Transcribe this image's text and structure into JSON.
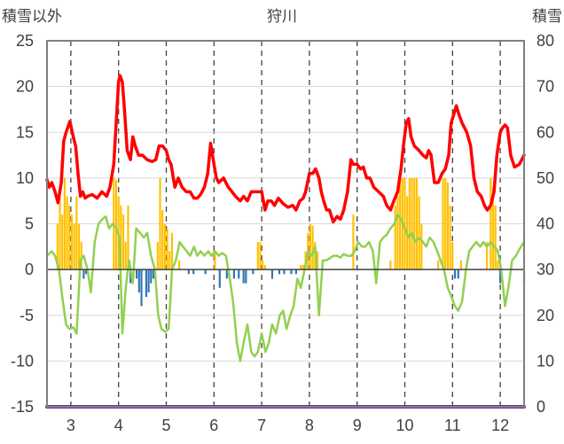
{
  "chart_data": {
    "type": "line",
    "title": "狩川",
    "ylabel_left": "積雪以外",
    "ylabel_right": "積雪",
    "ylim_left": [
      -15,
      25
    ],
    "ylim_right": [
      0,
      80
    ],
    "yticks_left": [
      -15,
      -10,
      -5,
      0,
      5,
      10,
      15,
      20,
      25
    ],
    "yticks_right": [
      0,
      10,
      20,
      30,
      40,
      50,
      60,
      70,
      80
    ],
    "xlim": [
      2.5,
      12.5
    ],
    "xticks": [
      3,
      4,
      5,
      6,
      7,
      8,
      9,
      10,
      11,
      12
    ],
    "xtick_labels": [
      "3",
      "4",
      "5",
      "6",
      "7",
      "8",
      "9",
      "10",
      "11",
      "12"
    ],
    "grid": "dashed",
    "colors": {
      "red_line": "#ff0000",
      "green_line": "#92d050",
      "bar_positive": "#ffc000",
      "bar_negative": "#2e75b6",
      "bottom_line": "#7030a0",
      "frame": "#7f7f7f",
      "text": "#404040"
    },
    "series": [
      {
        "axis": "left",
        "style": "line",
        "color": "#ff0000",
        "x": [
          2.5,
          2.55,
          2.6,
          2.67,
          2.73,
          2.8,
          2.85,
          2.9,
          2.98,
          3.05,
          3.1,
          3.15,
          3.2,
          3.25,
          3.3,
          3.35,
          3.45,
          3.55,
          3.65,
          3.75,
          3.82,
          3.9,
          3.95,
          4.0,
          4.03,
          4.08,
          4.13,
          4.18,
          4.25,
          4.3,
          4.35,
          4.42,
          4.5,
          4.6,
          4.7,
          4.78,
          4.85,
          4.92,
          5.0,
          5.05,
          5.1,
          5.18,
          5.25,
          5.33,
          5.42,
          5.5,
          5.58,
          5.65,
          5.72,
          5.8,
          5.87,
          5.93,
          6.0,
          6.05,
          6.1,
          6.2,
          6.3,
          6.38,
          6.45,
          6.55,
          6.62,
          6.7,
          6.78,
          6.85,
          6.92,
          7.0,
          7.07,
          7.13,
          7.2,
          7.27,
          7.35,
          7.45,
          7.55,
          7.65,
          7.72,
          7.8,
          7.87,
          7.92,
          8.0,
          8.07,
          8.13,
          8.2,
          8.25,
          8.3,
          8.36,
          8.42,
          8.5,
          8.58,
          8.65,
          8.72,
          8.8,
          8.87,
          8.92,
          9.0,
          9.07,
          9.13,
          9.2,
          9.27,
          9.35,
          9.45,
          9.55,
          9.62,
          9.7,
          9.77,
          9.85,
          9.92,
          9.97,
          10.03,
          10.08,
          10.13,
          10.2,
          10.3,
          10.38,
          10.45,
          10.5,
          10.55,
          10.62,
          10.7,
          10.78,
          10.85,
          10.92,
          10.97,
          11.03,
          11.08,
          11.13,
          11.2,
          11.3,
          11.38,
          11.45,
          11.52,
          11.6,
          11.67,
          11.73,
          11.8,
          11.87,
          11.93,
          12.0,
          12.05,
          12.1,
          12.15,
          12.22,
          12.3,
          12.4,
          12.5
        ],
        "values": [
          9.8,
          9,
          9.5,
          8.5,
          7.3,
          9.5,
          14,
          15,
          16.2,
          14.5,
          13.5,
          10.5,
          8,
          8.5,
          7.8,
          8,
          8.2,
          7.8,
          8.5,
          8,
          9,
          11.5,
          16,
          20.5,
          21.2,
          20.5,
          17,
          13,
          12,
          14.5,
          13.5,
          12.5,
          12.5,
          12,
          11.8,
          12,
          13.5,
          13.5,
          13,
          12,
          11.5,
          9,
          10,
          9,
          8.5,
          8.5,
          7.8,
          7.8,
          8.2,
          9,
          10.5,
          13.8,
          11.5,
          10,
          9.5,
          10,
          9,
          8.5,
          8,
          7.5,
          8,
          7.5,
          8.5,
          8.5,
          8.5,
          8.5,
          6.5,
          7.5,
          7.5,
          7,
          7.8,
          7.2,
          6.8,
          7,
          6.5,
          7.5,
          7.8,
          8.5,
          10.5,
          10.5,
          11,
          10,
          8.5,
          7.5,
          6.5,
          6.5,
          5.2,
          5.8,
          5.5,
          6.5,
          8.5,
          12,
          11.5,
          11.5,
          11,
          11.2,
          10,
          10,
          9,
          8.5,
          8,
          7,
          6.5,
          7.5,
          8.5,
          11,
          13.5,
          16,
          16.5,
          14.5,
          13.5,
          13,
          12.5,
          12.2,
          13,
          12.5,
          9.5,
          9.5,
          10.5,
          11,
          12.5,
          16,
          17,
          17.9,
          17,
          16,
          15,
          13.5,
          10,
          8.5,
          8,
          7,
          6.5,
          7,
          8.5,
          12.5,
          15,
          15.5,
          15.8,
          15.5,
          12.5,
          11.2,
          11.5,
          12.5
        ]
      },
      {
        "axis": "left",
        "style": "line",
        "color": "#92d050",
        "x": [
          2.5,
          2.6,
          2.67,
          2.75,
          2.82,
          2.9,
          2.97,
          3.05,
          3.12,
          3.2,
          3.27,
          3.35,
          3.42,
          3.5,
          3.58,
          3.66,
          3.73,
          3.8,
          3.88,
          3.95,
          4.02,
          4.08,
          4.15,
          4.22,
          4.3,
          4.37,
          4.45,
          4.53,
          4.6,
          4.68,
          4.76,
          4.83,
          4.9,
          4.98,
          5.05,
          5.12,
          5.2,
          5.28,
          5.35,
          5.43,
          5.5,
          5.58,
          5.65,
          5.72,
          5.8,
          5.88,
          5.95,
          6.02,
          6.1,
          6.17,
          6.25,
          6.33,
          6.4,
          6.48,
          6.55,
          6.62,
          6.7,
          6.78,
          6.85,
          6.92,
          7.0,
          7.08,
          7.15,
          7.22,
          7.3,
          7.38,
          7.45,
          7.52,
          7.6,
          7.67,
          7.75,
          7.82,
          7.9,
          7.97,
          8.05,
          8.12,
          8.2,
          8.28,
          8.35,
          8.42,
          8.5,
          8.58,
          8.65,
          8.72,
          8.8,
          8.88,
          8.95,
          9.02,
          9.1,
          9.17,
          9.25,
          9.33,
          9.4,
          9.48,
          9.55,
          9.62,
          9.7,
          9.78,
          9.85,
          9.92,
          10.0,
          10.08,
          10.15,
          10.22,
          10.3,
          10.38,
          10.45,
          10.52,
          10.6,
          10.68,
          10.75,
          10.82,
          10.9,
          10.98,
          11.05,
          11.12,
          11.2,
          11.28,
          11.35,
          11.42,
          11.5,
          11.58,
          11.65,
          11.72,
          11.8,
          11.88,
          11.95,
          12.02,
          12.1,
          12.17,
          12.25,
          12.33,
          12.4,
          12.5
        ],
        "values": [
          1.5,
          2,
          1.5,
          0,
          -3,
          -6,
          -6.5,
          -6.3,
          -7,
          1,
          1.5,
          0,
          -2.5,
          3,
          5,
          5.5,
          5.8,
          4.5,
          5,
          4.5,
          3.5,
          -7,
          -2,
          1,
          -1.5,
          4.5,
          4,
          3.5,
          4,
          1.5,
          0,
          -5,
          -6.5,
          -6.8,
          -6.5,
          0,
          1,
          3,
          2.5,
          2,
          1.5,
          2.5,
          1.5,
          2,
          1.5,
          2,
          1.5,
          2,
          1.5,
          1.8,
          1.5,
          -1,
          -3.5,
          -8,
          -10,
          -8,
          -6,
          -9,
          -9.5,
          -9,
          -7,
          -9,
          -8,
          -6,
          -7,
          -5,
          -4.5,
          -6.5,
          -5,
          -4,
          -1,
          -2,
          0,
          2,
          1.5,
          2.5,
          -5,
          1,
          1,
          1.2,
          1.5,
          1.5,
          1.3,
          1.7,
          1.5,
          1.5,
          2,
          3,
          2.5,
          2.5,
          3,
          2,
          -1.5,
          3,
          3.5,
          3.8,
          4.5,
          5,
          6,
          5.5,
          4.5,
          3.5,
          4,
          3,
          3.5,
          3,
          2.5,
          3.5,
          3,
          2,
          1,
          0,
          -2,
          -3,
          -4,
          -4.5,
          -3.5,
          0,
          2,
          2.5,
          3,
          2.5,
          3,
          2.5,
          3,
          2.5,
          2,
          0,
          -4,
          -2,
          1,
          1.5,
          2.2,
          3
        ]
      },
      {
        "axis": "left",
        "style": "bars",
        "color_positive": "#ffc000",
        "color_negative": "#2e75b6",
        "x": [
          2.72,
          2.77,
          2.82,
          2.87,
          2.92,
          2.97,
          3.02,
          3.07,
          3.12,
          3.17,
          3.22,
          3.27,
          3.32,
          3.9,
          3.95,
          4.0,
          4.05,
          4.1,
          4.15,
          4.2,
          4.25,
          4.38,
          4.43,
          4.48,
          4.58,
          4.63,
          4.68,
          4.73,
          4.82,
          4.87,
          4.92,
          4.97,
          5.02,
          5.07,
          5.12,
          5.27,
          5.47,
          5.57,
          5.82,
          6.02,
          6.12,
          6.27,
          6.42,
          6.52,
          6.62,
          6.67,
          6.82,
          6.92,
          6.97,
          7.02,
          7.07,
          7.22,
          7.37,
          7.47,
          7.62,
          7.72,
          7.82,
          7.87,
          7.92,
          7.97,
          8.02,
          8.07,
          8.12,
          8.17,
          8.92,
          9.7,
          9.8,
          9.85,
          9.9,
          9.95,
          10.0,
          10.05,
          10.1,
          10.15,
          10.2,
          10.25,
          10.3,
          10.35,
          10.7,
          10.8,
          10.85,
          10.9,
          10.95,
          11.0,
          11.05,
          11.12,
          11.18,
          11.72,
          11.8,
          11.85,
          11.9,
          11.95,
          12.0,
          12.5
        ],
        "values": [
          5,
          8,
          6,
          10,
          8,
          7,
          6,
          5,
          8,
          5,
          3,
          -1,
          -0.5,
          10,
          9.8,
          8,
          7,
          6,
          3,
          7,
          -1.5,
          -1,
          -2.5,
          -4,
          -3,
          -2.5,
          -1.5,
          -1,
          3,
          10,
          6.5,
          5,
          4.5,
          2,
          4,
          1,
          -0.5,
          -0.5,
          -0.5,
          2,
          -2,
          -1,
          -1,
          -1,
          -1.5,
          -1.5,
          -0.5,
          3,
          3,
          1,
          0.5,
          -1,
          -0.5,
          -0.5,
          -0.5,
          -0.5,
          0.5,
          0.5,
          2,
          4,
          5,
          4.8,
          3,
          2,
          6,
          1,
          7,
          8,
          10,
          10,
          10,
          8,
          10,
          10,
          10,
          10,
          8,
          5,
          1,
          10,
          10,
          9.5,
          7,
          3,
          -1,
          -1,
          1,
          3,
          10,
          9,
          7,
          1,
          -1.5,
          -1.5
        ]
      },
      {
        "axis": "right",
        "style": "line",
        "color": "#7030a0",
        "x": [
          2.5,
          12.5
        ],
        "values": [
          0,
          0
        ]
      }
    ]
  }
}
